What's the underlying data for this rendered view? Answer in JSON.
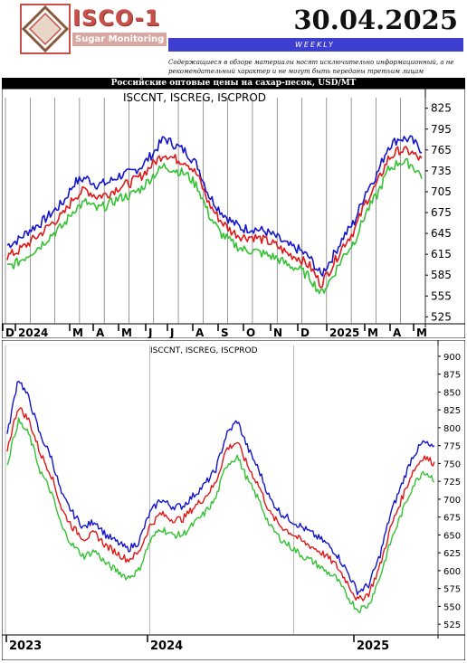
{
  "header": {
    "brand": "ISCO-1",
    "brand_sub": "Sugar Monitoring",
    "date": "30.04.2025",
    "weekly": "WEEKLY",
    "disclaimer": "Содержащиеся в обзоре материалы носят исключительно информационный, а не рекомендательный характер и не могут быть переданы третьим лицам",
    "chart_title": "Российские оптовые цены на сахар-песок, USD/MT",
    "logo_color": "#c8504a"
  },
  "colors": {
    "blue": "#1515cc",
    "red": "#e01818",
    "green": "#34c234",
    "grid": "#666666",
    "accent_bar": "#3e3ed0"
  },
  "chart_data": [
    {
      "type": "line",
      "title": "ISCCNT, ISCREG, ISCPROD",
      "xlabel": "",
      "ylabel": "",
      "ylim": [
        515,
        835
      ],
      "yticks": [
        525,
        555,
        585,
        615,
        645,
        675,
        705,
        735,
        765,
        795,
        825
      ],
      "x_labels": [
        "D",
        "2024",
        "M",
        "A",
        "M",
        "J",
        "J",
        "A",
        "S",
        "O",
        "N",
        "D",
        "2025",
        "M",
        "A",
        "M"
      ],
      "series": [
        {
          "name": "ISCCNT",
          "color": "#1515cc",
          "values": [
            628,
            636,
            650,
            660,
            675,
            690,
            718,
            725,
            715,
            718,
            728,
            732,
            742,
            760,
            782,
            772,
            762,
            742,
            700,
            678,
            662,
            652,
            652,
            648,
            640,
            628,
            622,
            610,
            585,
            610,
            640,
            662,
            705,
            730,
            770,
            782,
            780,
            765
          ]
        },
        {
          "name": "ISCREG",
          "color": "#e01818",
          "values": [
            612,
            620,
            632,
            645,
            660,
            672,
            698,
            708,
            698,
            702,
            712,
            718,
            728,
            745,
            760,
            752,
            748,
            728,
            688,
            664,
            648,
            640,
            640,
            635,
            628,
            616,
            610,
            598,
            572,
            598,
            628,
            650,
            690,
            716,
            752,
            765,
            762,
            750
          ]
        },
        {
          "name": "ISCPROD",
          "color": "#34c234",
          "values": [
            596,
            604,
            616,
            628,
            644,
            656,
            680,
            690,
            680,
            686,
            696,
            700,
            710,
            728,
            742,
            736,
            730,
            712,
            672,
            646,
            632,
            622,
            620,
            615,
            610,
            600,
            594,
            582,
            558,
            582,
            612,
            634,
            674,
            700,
            736,
            748,
            745,
            728
          ]
        }
      ]
    },
    {
      "type": "line",
      "title": "ISCCNT, ISCREG, ISCPROD",
      "xlabel": "",
      "ylabel": "",
      "ylim": [
        510,
        910
      ],
      "yticks": [
        525,
        550,
        575,
        600,
        625,
        650,
        675,
        700,
        725,
        750,
        775,
        800,
        825,
        850,
        875,
        900
      ],
      "x_labels": [
        "2023",
        "2024",
        "2025"
      ],
      "series": [
        {
          "name": "ISCCNT",
          "color": "#1515cc",
          "values": [
            790,
            870,
            840,
            790,
            760,
            705,
            680,
            660,
            670,
            650,
            640,
            630,
            640,
            680,
            700,
            690,
            690,
            705,
            720,
            740,
            790,
            810,
            770,
            740,
            700,
            680,
            670,
            660,
            650,
            640,
            625,
            600,
            570,
            580,
            620,
            680,
            720,
            760,
            780,
            770
          ]
        },
        {
          "name": "ISCREG",
          "color": "#e01818",
          "values": [
            770,
            830,
            810,
            765,
            735,
            685,
            660,
            645,
            652,
            635,
            625,
            615,
            625,
            662,
            680,
            672,
            672,
            688,
            702,
            722,
            770,
            780,
            745,
            718,
            680,
            662,
            652,
            640,
            632,
            622,
            608,
            585,
            558,
            568,
            605,
            660,
            700,
            738,
            760,
            750
          ]
        },
        {
          "name": "ISCPROD",
          "color": "#34c234",
          "values": [
            750,
            810,
            790,
            740,
            710,
            660,
            635,
            620,
            628,
            610,
            600,
            590,
            600,
            640,
            660,
            650,
            650,
            665,
            680,
            700,
            748,
            760,
            725,
            698,
            662,
            644,
            632,
            620,
            612,
            600,
            590,
            565,
            545,
            552,
            590,
            640,
            680,
            718,
            740,
            728
          ]
        }
      ]
    }
  ]
}
